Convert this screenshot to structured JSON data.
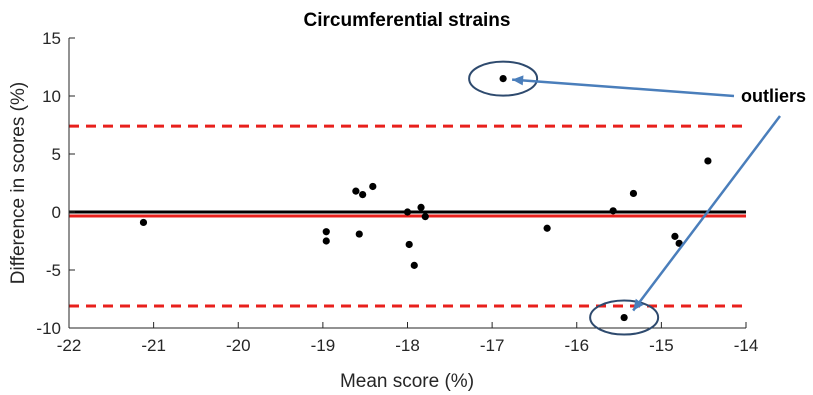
{
  "chart_data": {
    "type": "scatter",
    "title": "Circumferential strains",
    "xlabel": "Mean score (%)",
    "ylabel": "Difference in scores (%)",
    "xlim": [
      -22,
      -14
    ],
    "ylim": [
      -10,
      15
    ],
    "xticks": [
      -22,
      -21,
      -20,
      -19,
      -18,
      -17,
      -16,
      -15,
      -14
    ],
    "yticks": [
      -10,
      -5,
      0,
      5,
      10,
      15
    ],
    "grid": false,
    "points": [
      {
        "x": -21.12,
        "y": -0.9
      },
      {
        "x": -18.96,
        "y": -1.7
      },
      {
        "x": -18.96,
        "y": -2.5
      },
      {
        "x": -18.61,
        "y": 1.8
      },
      {
        "x": -18.57,
        "y": -1.9
      },
      {
        "x": -18.53,
        "y": 1.5
      },
      {
        "x": -18.41,
        "y": 2.2
      },
      {
        "x": -18.0,
        "y": 0.0
      },
      {
        "x": -17.98,
        "y": -2.8
      },
      {
        "x": -17.92,
        "y": -4.6
      },
      {
        "x": -17.84,
        "y": 0.4
      },
      {
        "x": -17.79,
        "y": -0.4
      },
      {
        "x": -16.87,
        "y": 11.5
      },
      {
        "x": -16.35,
        "y": -1.4
      },
      {
        "x": -15.57,
        "y": 0.1
      },
      {
        "x": -15.44,
        "y": -9.1
      },
      {
        "x": -15.33,
        "y": 1.6
      },
      {
        "x": -14.84,
        "y": -2.1
      },
      {
        "x": -14.79,
        "y": -2.7
      },
      {
        "x": -14.45,
        "y": 4.4
      }
    ],
    "reference_lines": [
      {
        "y": 0,
        "color": "#000000",
        "style": "solid"
      },
      {
        "y": -0.35,
        "color": "#e8201c",
        "style": "solid"
      },
      {
        "y": 7.4,
        "color": "#e8201c",
        "style": "dashed"
      },
      {
        "y": -8.1,
        "color": "#e8201c",
        "style": "dashed"
      }
    ],
    "annotation": {
      "text": "outliers",
      "highlighted_points": [
        {
          "x": -16.87,
          "y": 11.5
        },
        {
          "x": -15.44,
          "y": -9.1
        }
      ],
      "arrow_color": "#4a7ebb",
      "ellipse_color": "#2e4a6e"
    }
  }
}
